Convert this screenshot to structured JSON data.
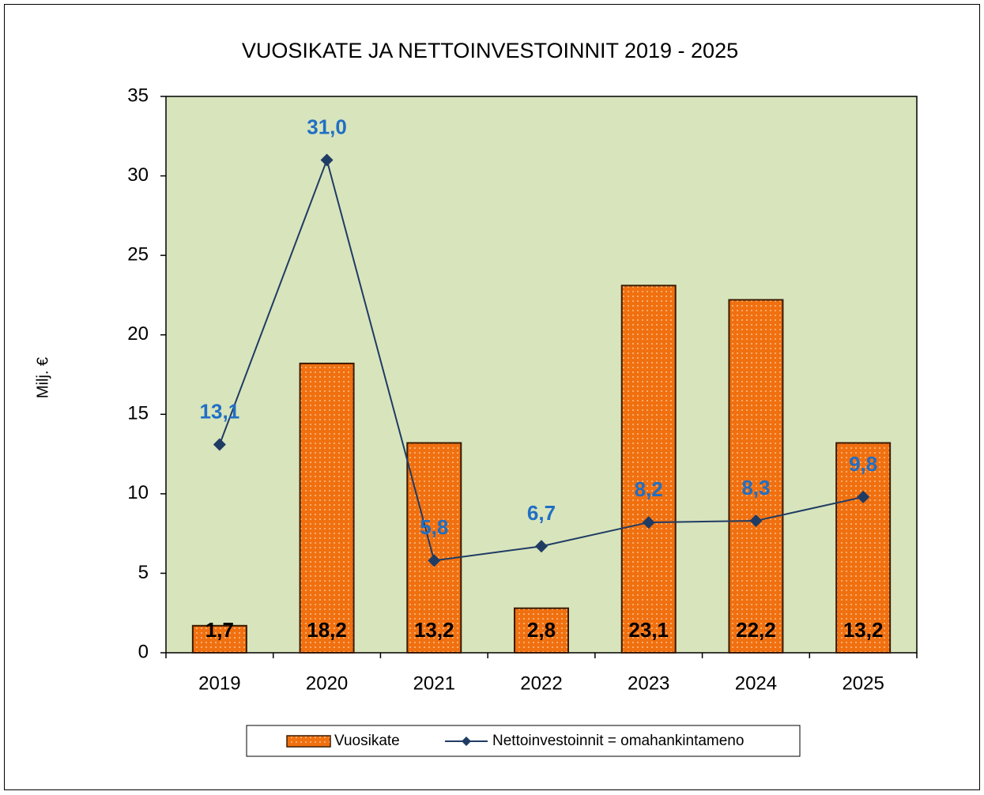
{
  "chart_data": {
    "type": "combo",
    "title": "VUOSIKATE JA NETTOINVESTOINNIT 2019 - 2025",
    "y_label": "Milj. €",
    "categories": [
      "2019",
      "2020",
      "2021",
      "2022",
      "2023",
      "2024",
      "2025"
    ],
    "series": [
      {
        "name": "Vuosikate",
        "type": "bar",
        "color": "#f07010",
        "values": [
          1.7,
          18.2,
          13.2,
          2.8,
          23.1,
          22.2,
          13.2
        ],
        "value_labels": [
          "1,7",
          "18,2",
          "13,2",
          "2,8",
          "23,1",
          "22,2",
          "13,2"
        ]
      },
      {
        "name": "Nettoinvestoinnit = omahankintameno",
        "type": "line",
        "color": "#1f3c64",
        "values": [
          13.1,
          31.0,
          5.8,
          6.7,
          8.2,
          8.3,
          9.8
        ],
        "value_labels": [
          "13,1",
          "31,0",
          "5,8",
          "6,7",
          "8,2",
          "8,3",
          "9,8"
        ]
      }
    ],
    "ylim": [
      0,
      35
    ],
    "yticks": [
      0,
      5,
      10,
      15,
      20,
      25,
      30,
      35
    ],
    "plot_background": "#d8e4bc",
    "legend": "bottom"
  }
}
